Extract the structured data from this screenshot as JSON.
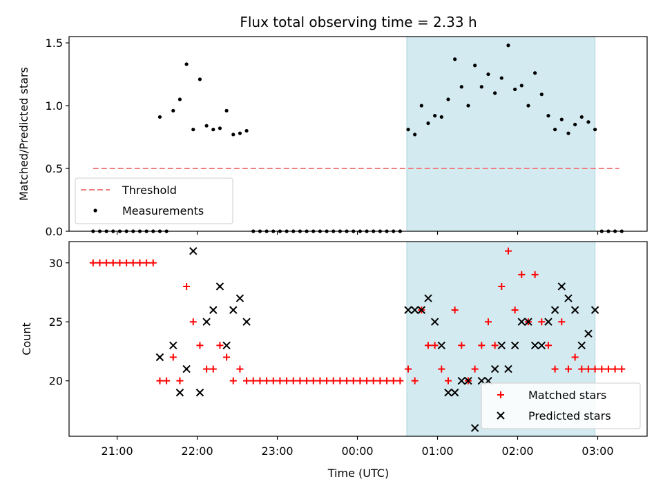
{
  "chart_data": [
    {
      "type": "scatter",
      "title": "Flux total observing time = 2.33 h",
      "xlabel": "",
      "ylabel": "Matched/Predicted stars",
      "ylim": [
        0,
        1.55
      ],
      "yticks": [
        "0.0",
        "0.5",
        "1.0",
        "1.5"
      ],
      "xlim": [
        "20:24",
        "03:37"
      ],
      "xticks": [
        "21:00",
        "22:00",
        "23:00",
        "00:00",
        "01:00",
        "02:00",
        "03:00"
      ],
      "shaded_span": {
        "start": "00:37",
        "end": "02:58",
        "color": "#d3eaf0"
      },
      "legend": {
        "placement": "lower-left",
        "entries": [
          "Threshold",
          "Measurements"
        ]
      },
      "series": [
        {
          "name": "Threshold",
          "style": "dashed-line",
          "color": "#f08080",
          "points": [
            [
              "20:42",
              0.5
            ],
            [
              "03:16",
              0.5
            ]
          ]
        },
        {
          "name": "Measurements",
          "style": "dot",
          "color": "#000000",
          "points": [
            [
              "20:42",
              0
            ],
            [
              "20:47",
              0
            ],
            [
              "20:52",
              0
            ],
            [
              "20:57",
              0
            ],
            [
              "21:02",
              0
            ],
            [
              "21:07",
              0
            ],
            [
              "21:12",
              0
            ],
            [
              "21:17",
              0
            ],
            [
              "21:22",
              0
            ],
            [
              "21:27",
              0
            ],
            [
              "21:32",
              0
            ],
            [
              "21:32",
              0.91
            ],
            [
              "21:37",
              0
            ],
            [
              "21:42",
              0.96
            ],
            [
              "21:47",
              1.05
            ],
            [
              "21:52",
              1.33
            ],
            [
              "21:57",
              0.81
            ],
            [
              "22:02",
              1.21
            ],
            [
              "22:07",
              0.84
            ],
            [
              "22:12",
              0.81
            ],
            [
              "22:17",
              0.82
            ],
            [
              "22:22",
              0.96
            ],
            [
              "22:27",
              0.77
            ],
            [
              "22:32",
              0.78
            ],
            [
              "22:37",
              0.8
            ],
            [
              "22:42",
              0
            ],
            [
              "22:47",
              0
            ],
            [
              "22:52",
              0
            ],
            [
              "22:57",
              0
            ],
            [
              "23:02",
              0
            ],
            [
              "23:07",
              0
            ],
            [
              "23:12",
              0
            ],
            [
              "23:17",
              0
            ],
            [
              "23:22",
              0
            ],
            [
              "23:27",
              0
            ],
            [
              "23:32",
              0
            ],
            [
              "23:37",
              0
            ],
            [
              "23:42",
              0
            ],
            [
              "23:47",
              0
            ],
            [
              "23:52",
              0
            ],
            [
              "23:57",
              0
            ],
            [
              "00:02",
              0
            ],
            [
              "00:07",
              0
            ],
            [
              "00:12",
              0
            ],
            [
              "00:17",
              0
            ],
            [
              "00:22",
              0
            ],
            [
              "00:27",
              0
            ],
            [
              "00:32",
              0
            ],
            [
              "00:38",
              0.81
            ],
            [
              "00:43",
              0.77
            ],
            [
              "00:48",
              1.0
            ],
            [
              "00:53",
              0.86
            ],
            [
              "00:58",
              0.92
            ],
            [
              "01:03",
              0.91
            ],
            [
              "01:08",
              1.05
            ],
            [
              "01:13",
              1.37
            ],
            [
              "01:18",
              1.15
            ],
            [
              "01:23",
              1.0
            ],
            [
              "01:28",
              1.32
            ],
            [
              "01:33",
              1.15
            ],
            [
              "01:38",
              1.25
            ],
            [
              "01:43",
              1.1
            ],
            [
              "01:48",
              1.22
            ],
            [
              "01:53",
              1.48
            ],
            [
              "01:58",
              1.13
            ],
            [
              "02:03",
              1.16
            ],
            [
              "02:08",
              1.0
            ],
            [
              "02:13",
              1.26
            ],
            [
              "02:18",
              1.09
            ],
            [
              "02:23",
              0.92
            ],
            [
              "02:28",
              0.81
            ],
            [
              "02:33",
              0.89
            ],
            [
              "02:38",
              0.78
            ],
            [
              "02:43",
              0.85
            ],
            [
              "02:48",
              0.91
            ],
            [
              "02:53",
              0.87
            ],
            [
              "02:58",
              0.81
            ],
            [
              "03:03",
              0
            ],
            [
              "03:08",
              0
            ],
            [
              "03:13",
              0
            ],
            [
              "03:18",
              0
            ]
          ]
        }
      ]
    },
    {
      "type": "scatter",
      "title": "",
      "xlabel": "Time (UTC)",
      "ylabel": "Count",
      "ylim": [
        15.3,
        31.8
      ],
      "yticks": [
        "20",
        "25",
        "30"
      ],
      "xlim": [
        "20:24",
        "03:37"
      ],
      "xticks": [
        "21:00",
        "22:00",
        "23:00",
        "00:00",
        "01:00",
        "02:00",
        "03:00"
      ],
      "shaded_span": {
        "start": "00:37",
        "end": "02:58",
        "color": "#d3eaf0"
      },
      "legend": {
        "placement": "lower-right",
        "entries": [
          "Matched stars",
          "Predicted stars"
        ]
      },
      "series": [
        {
          "name": "Matched stars",
          "marker": "plus",
          "color": "#ff0000",
          "points": [
            [
              "20:42",
              30
            ],
            [
              "20:47",
              30
            ],
            [
              "20:52",
              30
            ],
            [
              "20:57",
              30
            ],
            [
              "21:02",
              30
            ],
            [
              "21:07",
              30
            ],
            [
              "21:12",
              30
            ],
            [
              "21:17",
              30
            ],
            [
              "21:22",
              30
            ],
            [
              "21:27",
              30
            ],
            [
              "21:32",
              20
            ],
            [
              "21:37",
              20
            ],
            [
              "21:42",
              22
            ],
            [
              "21:47",
              20
            ],
            [
              "21:52",
              28
            ],
            [
              "21:57",
              25
            ],
            [
              "22:02",
              23
            ],
            [
              "22:07",
              21
            ],
            [
              "22:12",
              21
            ],
            [
              "22:17",
              23
            ],
            [
              "22:22",
              22
            ],
            [
              "22:27",
              20
            ],
            [
              "22:32",
              21
            ],
            [
              "22:37",
              20
            ],
            [
              "22:42",
              20
            ],
            [
              "22:47",
              20
            ],
            [
              "22:52",
              20
            ],
            [
              "22:57",
              20
            ],
            [
              "23:02",
              20
            ],
            [
              "23:07",
              20
            ],
            [
              "23:12",
              20
            ],
            [
              "23:17",
              20
            ],
            [
              "23:22",
              20
            ],
            [
              "23:27",
              20
            ],
            [
              "23:32",
              20
            ],
            [
              "23:37",
              20
            ],
            [
              "23:42",
              20
            ],
            [
              "23:47",
              20
            ],
            [
              "23:52",
              20
            ],
            [
              "23:57",
              20
            ],
            [
              "00:02",
              20
            ],
            [
              "00:07",
              20
            ],
            [
              "00:12",
              20
            ],
            [
              "00:17",
              20
            ],
            [
              "00:22",
              20
            ],
            [
              "00:27",
              20
            ],
            [
              "00:32",
              20
            ],
            [
              "00:38",
              21
            ],
            [
              "00:43",
              20
            ],
            [
              "00:48",
              26
            ],
            [
              "00:53",
              23
            ],
            [
              "00:58",
              23
            ],
            [
              "01:03",
              21
            ],
            [
              "01:08",
              20
            ],
            [
              "01:13",
              26
            ],
            [
              "01:18",
              23
            ],
            [
              "01:23",
              20
            ],
            [
              "01:28",
              21
            ],
            [
              "01:33",
              23
            ],
            [
              "01:38",
              25
            ],
            [
              "01:43",
              23
            ],
            [
              "01:48",
              28
            ],
            [
              "01:53",
              31
            ],
            [
              "01:58",
              26
            ],
            [
              "02:03",
              29
            ],
            [
              "02:08",
              25
            ],
            [
              "02:13",
              29
            ],
            [
              "02:18",
              25
            ],
            [
              "02:23",
              23
            ],
            [
              "02:28",
              21
            ],
            [
              "02:33",
              25
            ],
            [
              "02:38",
              21
            ],
            [
              "02:43",
              22
            ],
            [
              "02:48",
              21
            ],
            [
              "02:53",
              21
            ],
            [
              "02:58",
              21
            ],
            [
              "03:03",
              21
            ],
            [
              "03:08",
              21
            ],
            [
              "03:13",
              21
            ],
            [
              "03:18",
              21
            ]
          ]
        },
        {
          "name": "Predicted stars",
          "marker": "x",
          "color": "#000000",
          "points": [
            [
              "21:32",
              22
            ],
            [
              "21:42",
              23
            ],
            [
              "21:47",
              19
            ],
            [
              "21:52",
              21
            ],
            [
              "21:57",
              31
            ],
            [
              "22:02",
              19
            ],
            [
              "22:07",
              25
            ],
            [
              "22:12",
              26
            ],
            [
              "22:17",
              28
            ],
            [
              "22:22",
              23
            ],
            [
              "22:27",
              26
            ],
            [
              "22:32",
              27
            ],
            [
              "22:37",
              25
            ],
            [
              "00:38",
              26
            ],
            [
              "00:43",
              26
            ],
            [
              "00:48",
              26
            ],
            [
              "00:53",
              27
            ],
            [
              "00:58",
              25
            ],
            [
              "01:03",
              23
            ],
            [
              "01:08",
              19
            ],
            [
              "01:13",
              19
            ],
            [
              "01:18",
              20
            ],
            [
              "01:23",
              20
            ],
            [
              "01:28",
              16
            ],
            [
              "01:33",
              20
            ],
            [
              "01:38",
              20
            ],
            [
              "01:43",
              21
            ],
            [
              "01:48",
              23
            ],
            [
              "01:53",
              21
            ],
            [
              "01:58",
              23
            ],
            [
              "02:03",
              25
            ],
            [
              "02:08",
              25
            ],
            [
              "02:13",
              23
            ],
            [
              "02:18",
              23
            ],
            [
              "02:23",
              25
            ],
            [
              "02:28",
              26
            ],
            [
              "02:33",
              28
            ],
            [
              "02:38",
              27
            ],
            [
              "02:43",
              26
            ],
            [
              "02:48",
              23
            ],
            [
              "02:53",
              24
            ],
            [
              "02:58",
              26
            ]
          ]
        }
      ]
    }
  ]
}
